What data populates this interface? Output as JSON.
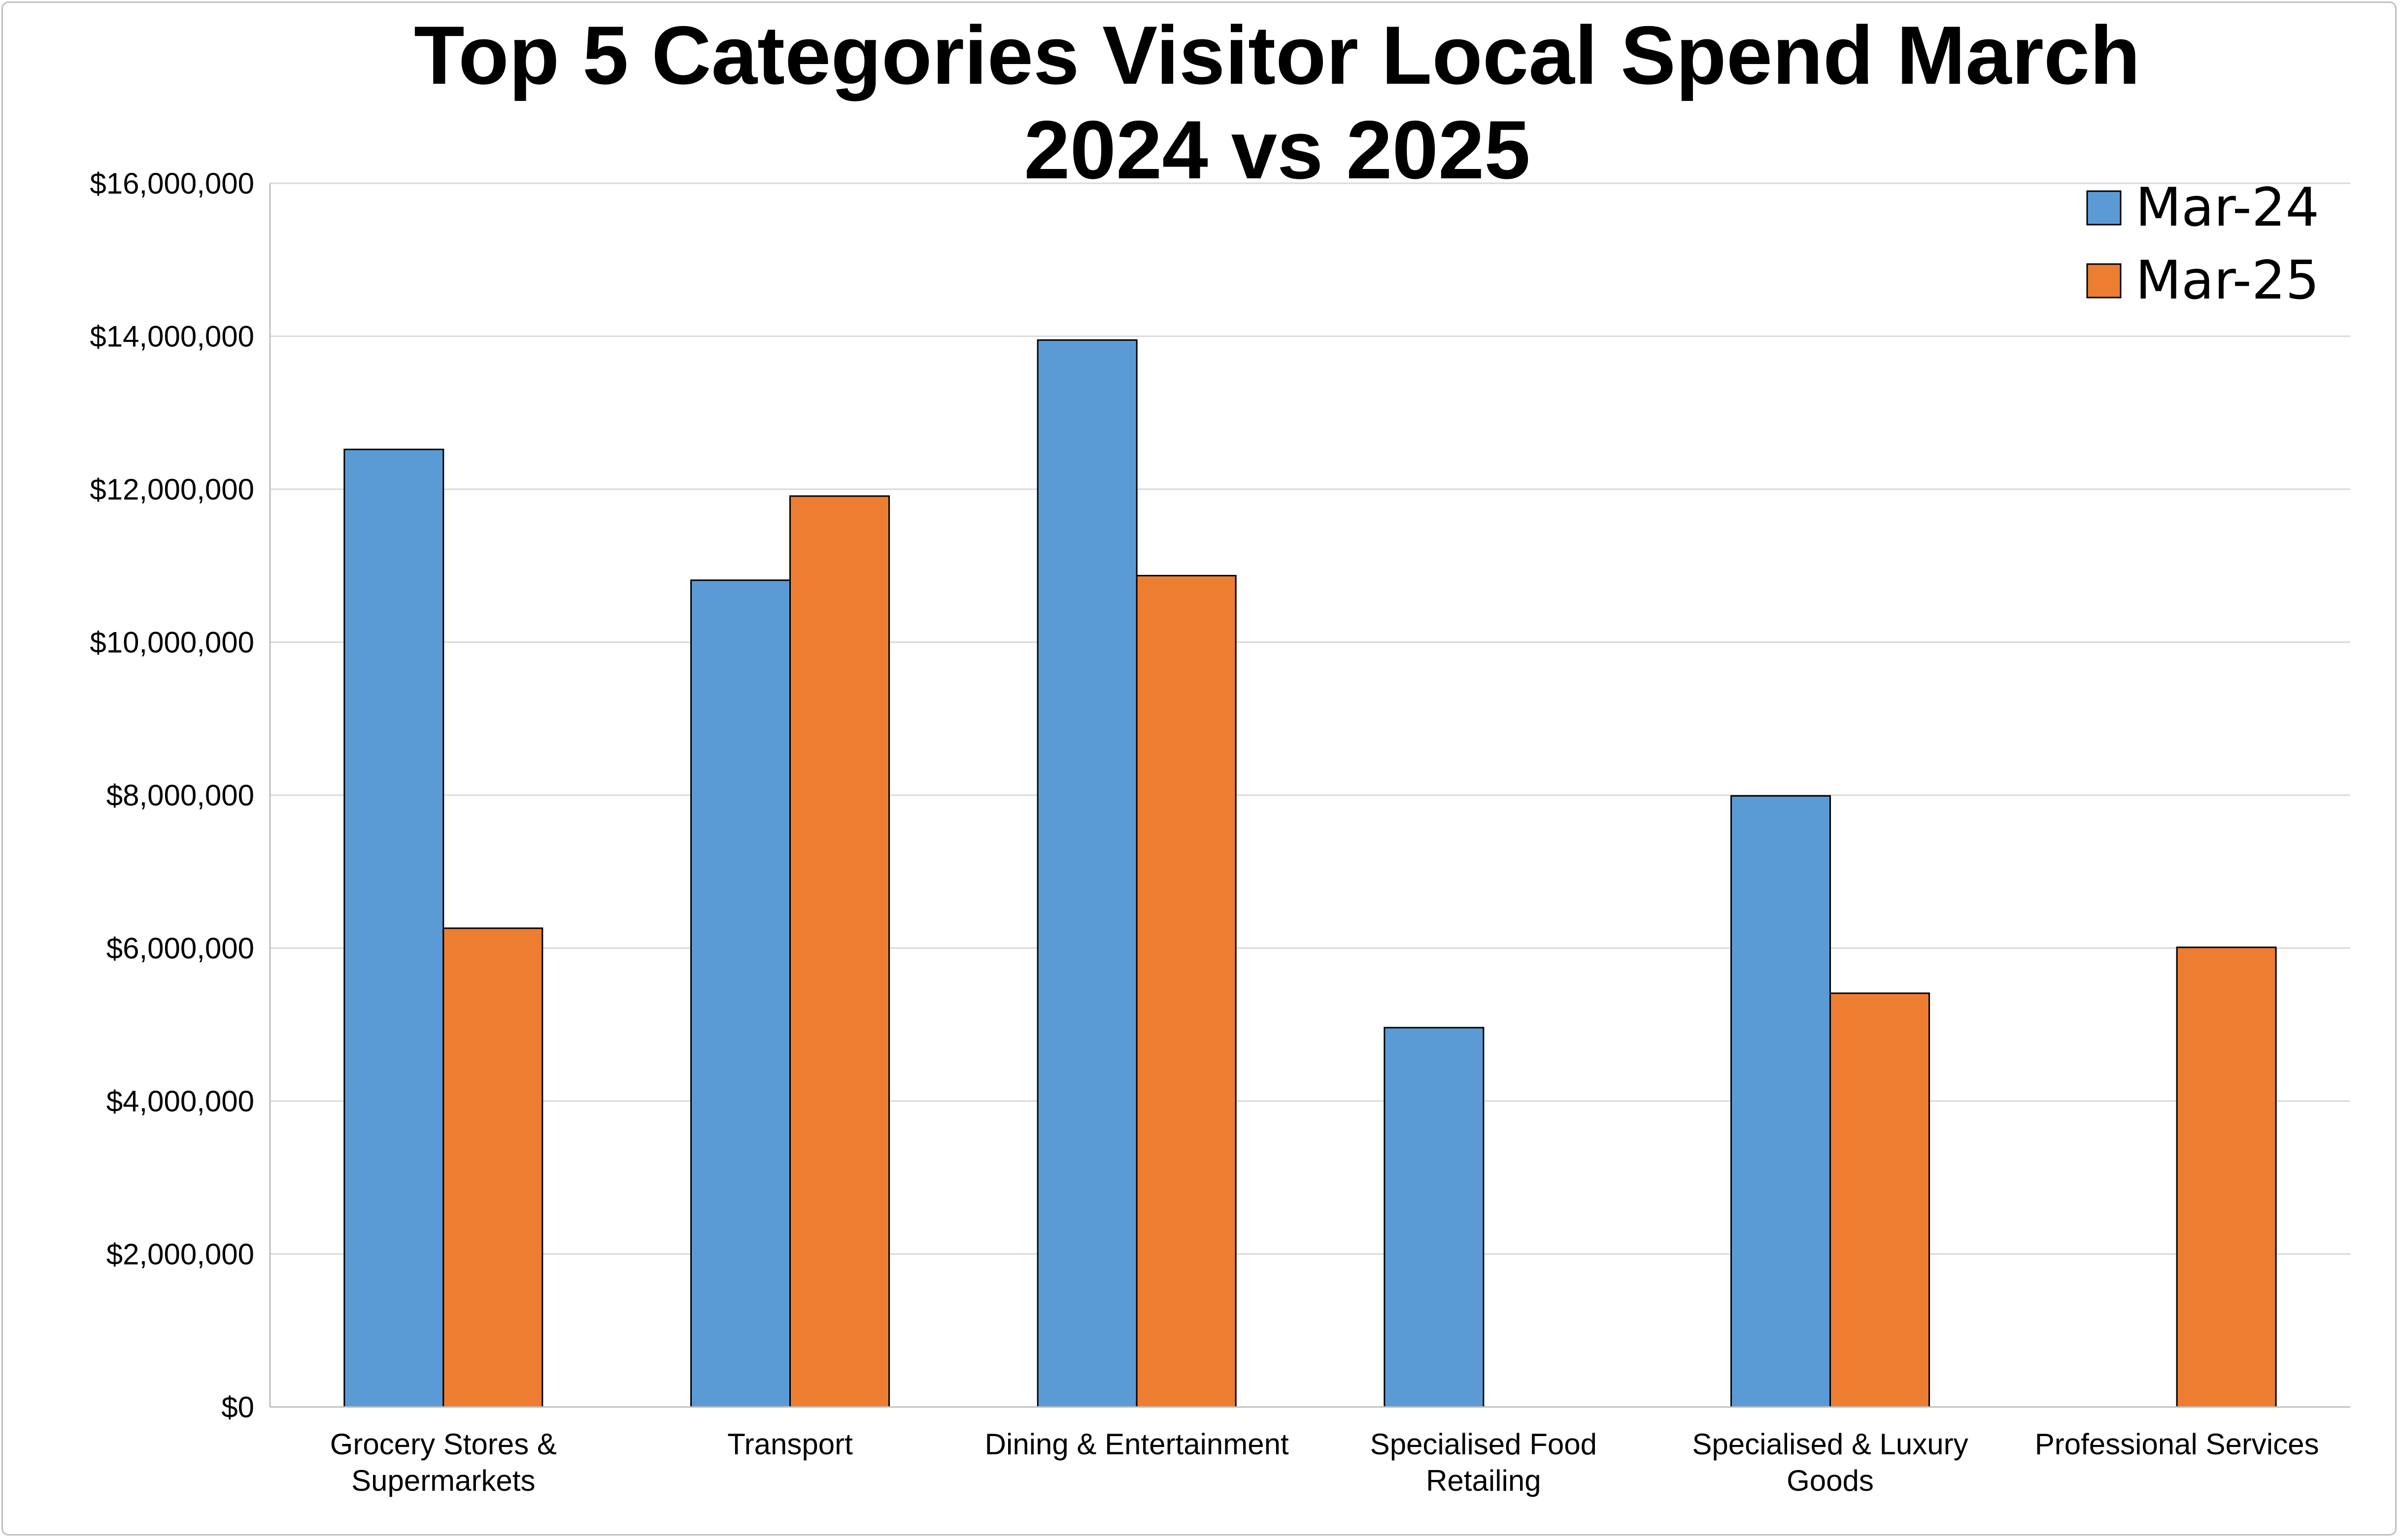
{
  "chart_data": {
    "type": "bar",
    "title_lines": [
      "Top 5 Categories Visitor Local Spend March",
      "2024 vs 2025"
    ],
    "xlabel": "",
    "ylabel": "",
    "categories": [
      [
        "Grocery Stores &",
        "Supermarkets"
      ],
      [
        "Transport"
      ],
      [
        "Dining & Entertainment"
      ],
      [
        "Specialised Food",
        "Retailing"
      ],
      [
        "Specialised & Luxury",
        "Goods"
      ],
      [
        "Professional Services"
      ]
    ],
    "series": [
      {
        "name": "Mar-24",
        "color": "#5b9bd5",
        "values": [
          12520000,
          10810000,
          13950000,
          4960000,
          7990000,
          null
        ]
      },
      {
        "name": "Mar-25",
        "color": "#ed7d31",
        "values": [
          6260000,
          11910000,
          10870000,
          null,
          5410000,
          6010000
        ]
      }
    ],
    "ylim": [
      0,
      16000000
    ],
    "ytick_labels": [
      "$0",
      "$2,000,000",
      "$4,000,000",
      "$6,000,000",
      "$8,000,000",
      "$10,000,000",
      "$12,000,000",
      "$14,000,000",
      "$16,000,000"
    ],
    "grid": true,
    "legend_position": "top-right"
  }
}
